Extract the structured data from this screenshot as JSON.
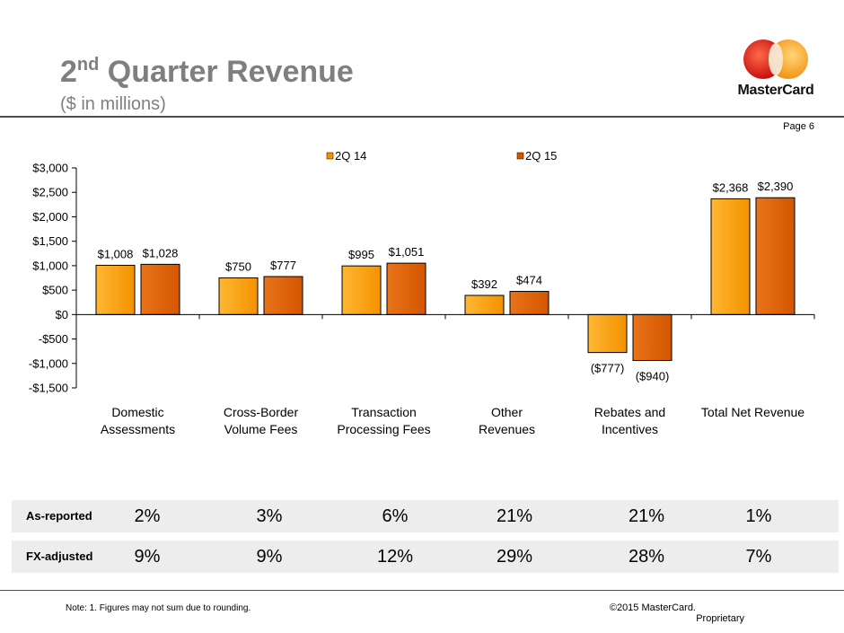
{
  "header": {
    "title_main": "2",
    "title_sup": "nd",
    "title_rest": " Quarter Revenue",
    "subtitle": "($ in millions)",
    "page_label": "Page 6",
    "logo_text": "MasterCard",
    "logo_colors": {
      "left": "#e2231a",
      "right": "#f79e1b"
    }
  },
  "chart_data": {
    "type": "bar",
    "title": "",
    "categories": [
      [
        "Domestic",
        "Assessments"
      ],
      [
        "Cross-Border",
        "Volume Fees"
      ],
      [
        "Transaction",
        "Processing Fees"
      ],
      [
        "Other",
        "Revenues"
      ],
      [
        "Rebates and",
        "Incentives"
      ],
      [
        "Total Net Revenue"
      ]
    ],
    "series": [
      {
        "name": "2Q 14",
        "color": "#f39200",
        "values": [
          1008,
          750,
          995,
          392,
          -777,
          2368
        ],
        "labels": [
          "$1,008",
          "$750",
          "$995",
          "$392",
          "($777)",
          "$2,368"
        ]
      },
      {
        "name": "2Q 15",
        "color": "#d45500",
        "values": [
          1028,
          777,
          1051,
          474,
          -940,
          2390
        ],
        "labels": [
          "$1,028",
          "$777",
          "$1,051",
          "$474",
          "($940)",
          "$2,390"
        ]
      }
    ],
    "ylim": [
      -1500,
      3000
    ],
    "yticks": [
      3000,
      2500,
      2000,
      1500,
      1000,
      500,
      0,
      -500,
      -1000,
      -1500
    ],
    "ytick_labels": [
      "$3,000",
      "$2,500",
      "$2,000",
      "$1,500",
      "$1,000",
      "$500",
      "$0",
      "-$500",
      "-$1,000",
      "-$1,500"
    ],
    "legend_position": "top",
    "grid": false,
    "xlabel": "",
    "ylabel": ""
  },
  "growth": {
    "as_reported": {
      "label": "As-reported",
      "values": [
        "2%",
        "3%",
        "6%",
        "21%",
        "21%",
        "1%"
      ]
    },
    "fx_adjusted": {
      "label": "FX-adjusted",
      "values": [
        "9%",
        "9%",
        "12%",
        "29%",
        "28%",
        "7%"
      ]
    }
  },
  "footer": {
    "note": "Note: 1. Figures may not sum due to rounding.",
    "copyright_line1": "©2015 MasterCard.",
    "copyright_line2": "Proprietary"
  }
}
